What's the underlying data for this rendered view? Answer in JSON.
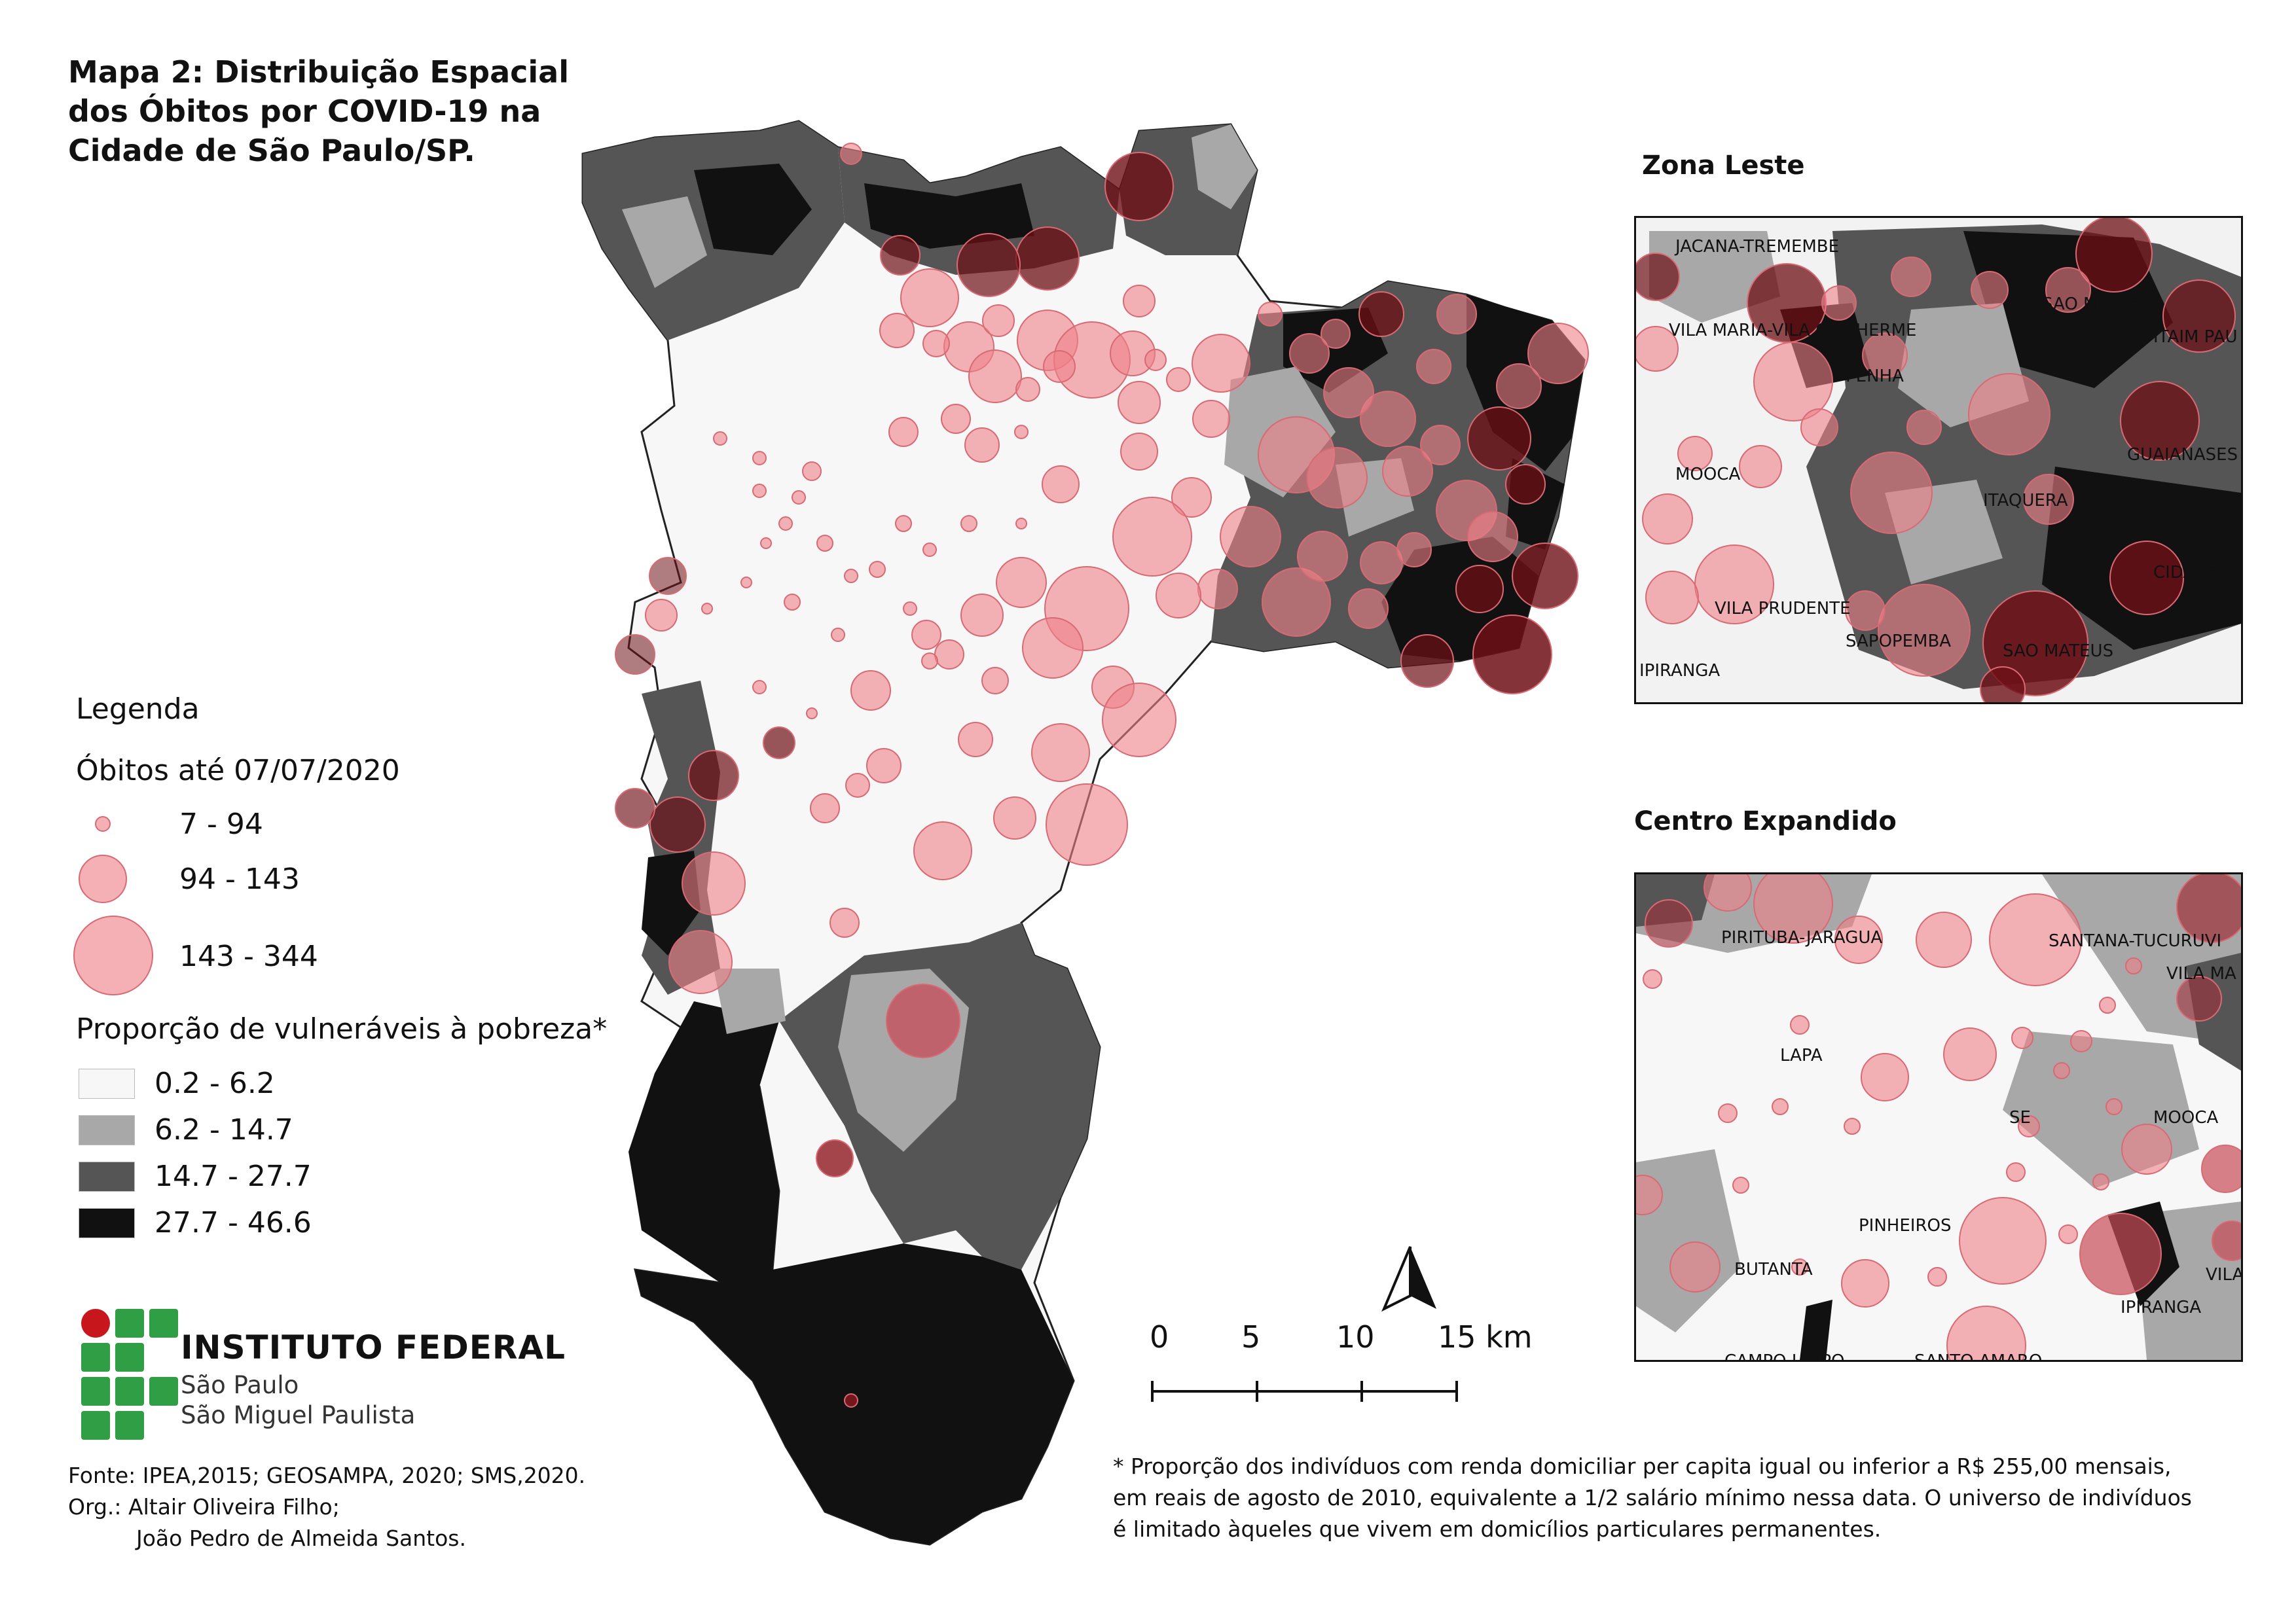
{
  "title": "Mapa 2: Distribuição Espacial dos Óbitos por COVID-19 na Cidade de São Paulo/SP.",
  "title_lines": [
    "Mapa 2: Distribuição Espacial",
    "dos Óbitos por COVID-19 na",
    "Cidade de São Paulo/SP."
  ],
  "colors": {
    "class_1": "#f7f7f7",
    "class_2": "#a8a8a8",
    "class_3": "#555555",
    "class_4": "#111111",
    "bubble_fill": "#ee8088",
    "bubble_dark": "#6e1016",
    "logo_green": "#2f9e44",
    "logo_red": "#c8161d"
  },
  "legend": {
    "heading": "Legenda",
    "deaths_title": "Óbitos até 07/07/2020",
    "death_classes": [
      "7 - 94",
      "94 - 143",
      "143 - 344"
    ],
    "poverty_title": "Proporção de vulneráveis à pobreza*",
    "poverty_classes": [
      "0.2 - 6.2",
      "6.2 - 14.7",
      "14.7 - 27.7",
      "27.7 - 46.6"
    ]
  },
  "insets": {
    "leste": {
      "title": "Zona Leste",
      "labels": [
        "JACANA-TREMEMBE",
        "SAO MIGUEL",
        "VILA MARIA-VILA GUILHERME",
        "ITAIM PAU",
        "PENHA",
        "GUAIANASES",
        "MOOCA",
        "ITAQUERA",
        "CIDADE TI",
        "VILA PRUDENTE",
        "SAPOPEMBA",
        "SAO MATEUS",
        "IPIRANGA"
      ]
    },
    "centro": {
      "title": "Centro Expandido",
      "labels": [
        "PIRITUBA-JARAGUA",
        "SANTANA-TUCURUVI",
        "VILA MA",
        "LAPA",
        "SE",
        "MOOCA",
        "PINHEIROS",
        "BUTANTA",
        "VILA",
        "IPIRANGA",
        "CAMPO LIMPO",
        "SANTO AMARO"
      ]
    }
  },
  "scale_bar": {
    "ticks": [
      "0",
      "5",
      "10"
    ],
    "last_tick": "15 km"
  },
  "institution": {
    "name": "INSTITUTO FEDERAL",
    "line1": "São Paulo",
    "line2": "São Miguel Paulista"
  },
  "source": {
    "fonte": "Fonte: IPEA,2015; GEOSAMPA, 2020; SMS,2020.",
    "org1": "Org.: Altair Oliveira Filho;",
    "org2": "João Pedro de Almeida Santos."
  },
  "footnote_lines": [
    "* Proporção dos indivíduos com renda domiciliar per capita igual ou inferior a R$ 255,00 mensais,",
    "em reais de agosto de 2010, equivalente a 1/2 salário mínimo nessa data. O universo de indivíduos",
    "é limitado àqueles que vivem em domicílios particulares permanentes."
  ]
}
